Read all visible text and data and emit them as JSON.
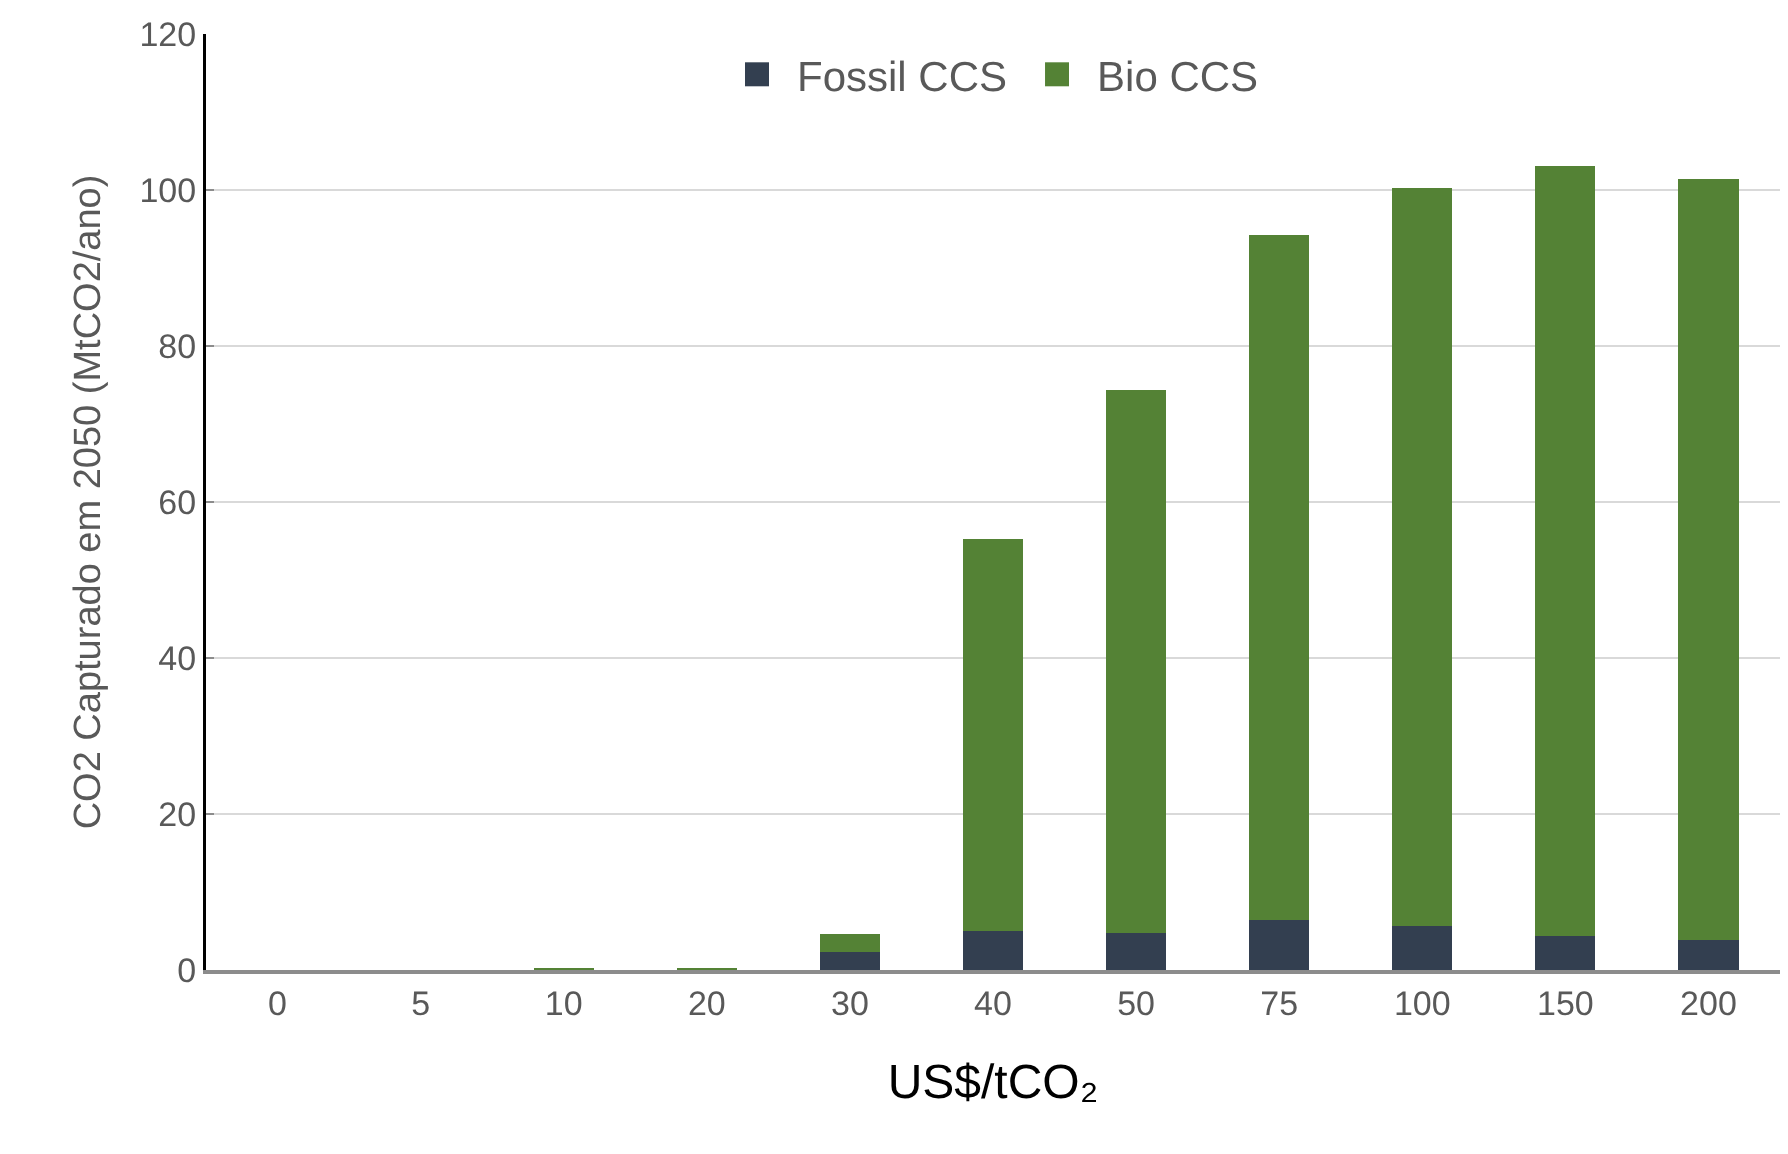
{
  "chart_data": {
    "type": "bar",
    "stacked": true,
    "xlabel": "US$/tCO₂",
    "ylabel": "CO2 Capturado em 2050 (MtCO2/ano)",
    "categories": [
      "0",
      "5",
      "10",
      "20",
      "30",
      "40",
      "50",
      "75",
      "100",
      "150",
      "200"
    ],
    "series": [
      {
        "name": "Fossil CCS",
        "color": "#333f50",
        "values": [
          0,
          0,
          0,
          0,
          2.3,
          5.0,
          4.8,
          6.4,
          5.6,
          4.4,
          3.8
        ]
      },
      {
        "name": "Bio CCS",
        "color": "#548235",
        "values": [
          0,
          0,
          0.3,
          0.3,
          2.3,
          50.3,
          69.5,
          87.8,
          94.7,
          98.7,
          97.6
        ]
      }
    ],
    "ylim": [
      0,
      120
    ],
    "yticks": [
      0,
      20,
      40,
      60,
      80,
      100,
      120
    ],
    "grid": "y",
    "legend": "top"
  }
}
